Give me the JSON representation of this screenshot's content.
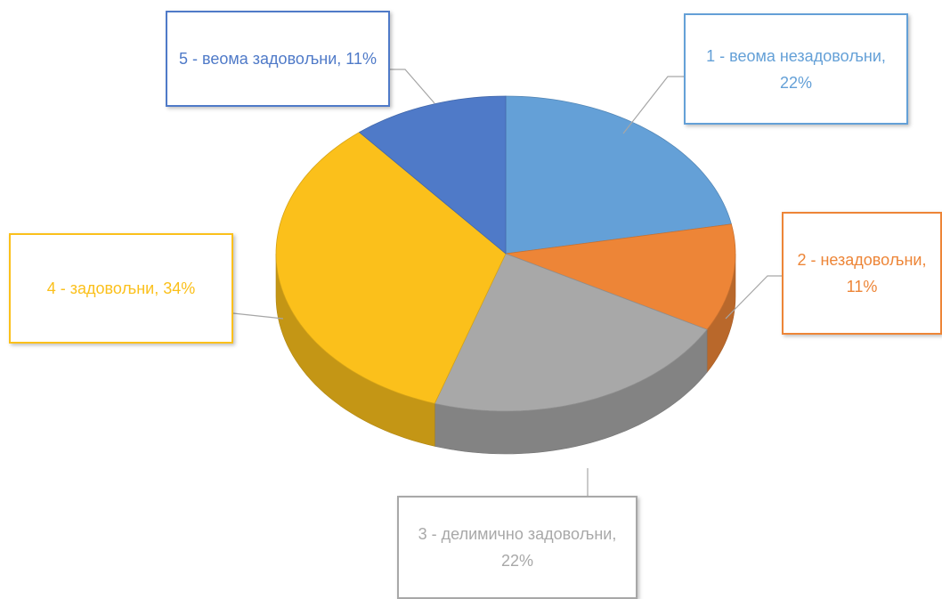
{
  "chart_data": {
    "type": "pie",
    "categories": [
      "1 - веома незадовољни",
      "2 - незадовољни",
      "3 - делимично задовољни",
      "4 - задовољни",
      "5 - веома задовољни"
    ],
    "values": [
      22,
      11,
      22,
      34,
      11
    ],
    "value_labels": [
      "22%",
      "11%",
      "22%",
      "34%",
      "11%"
    ],
    "colors": [
      "#64a0d7",
      "#ed8537",
      "#a8a8a8",
      "#fbc01b",
      "#4f7ac8"
    ],
    "three_d": true
  }
}
